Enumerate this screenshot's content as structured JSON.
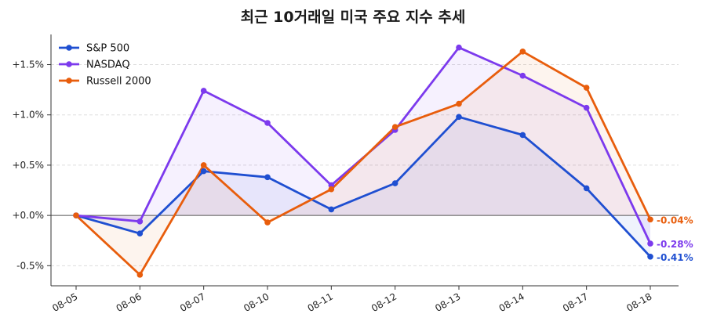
{
  "chart_data": {
    "type": "line",
    "title": "최근 10거래일 미국 주요 지수 추세",
    "xlabel": "",
    "ylabel": "",
    "categories": [
      "08-05",
      "08-06",
      "08-07",
      "08-10",
      "08-11",
      "08-12",
      "08-13",
      "08-14",
      "08-17",
      "08-18"
    ],
    "ylim": [
      -0.7,
      1.8
    ],
    "yticks": [
      -0.5,
      0.0,
      0.5,
      1.0,
      1.5
    ],
    "ytick_labels": [
      "-0.5%",
      "+0.0%",
      "+0.5%",
      "+1.0%",
      "+1.5%"
    ],
    "grid": true,
    "legend_position": "top-left",
    "series": [
      {
        "name": "S&P 500",
        "color": "#1f4fd1",
        "values": [
          0.0,
          -0.18,
          0.44,
          0.38,
          0.06,
          0.32,
          0.98,
          0.8,
          0.27,
          -0.41
        ],
        "end_label": "-0.41%"
      },
      {
        "name": "NASDAQ",
        "color": "#7c3aed",
        "values": [
          0.0,
          -0.06,
          1.24,
          0.92,
          0.3,
          0.85,
          1.67,
          1.39,
          1.07,
          -0.28
        ],
        "end_label": "-0.28%"
      },
      {
        "name": "Russell 2000",
        "color": "#e85d0c",
        "values": [
          0.0,
          -0.59,
          0.5,
          -0.07,
          0.26,
          0.88,
          1.11,
          1.63,
          1.27,
          -0.04
        ],
        "end_label": "-0.04%"
      }
    ]
  }
}
